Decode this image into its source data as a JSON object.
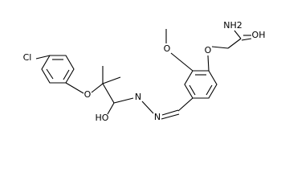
{
  "atoms": [
    "Cl",
    "O",
    "HO",
    "N",
    "N",
    "O",
    "O",
    "NH2",
    "OH"
  ]
}
